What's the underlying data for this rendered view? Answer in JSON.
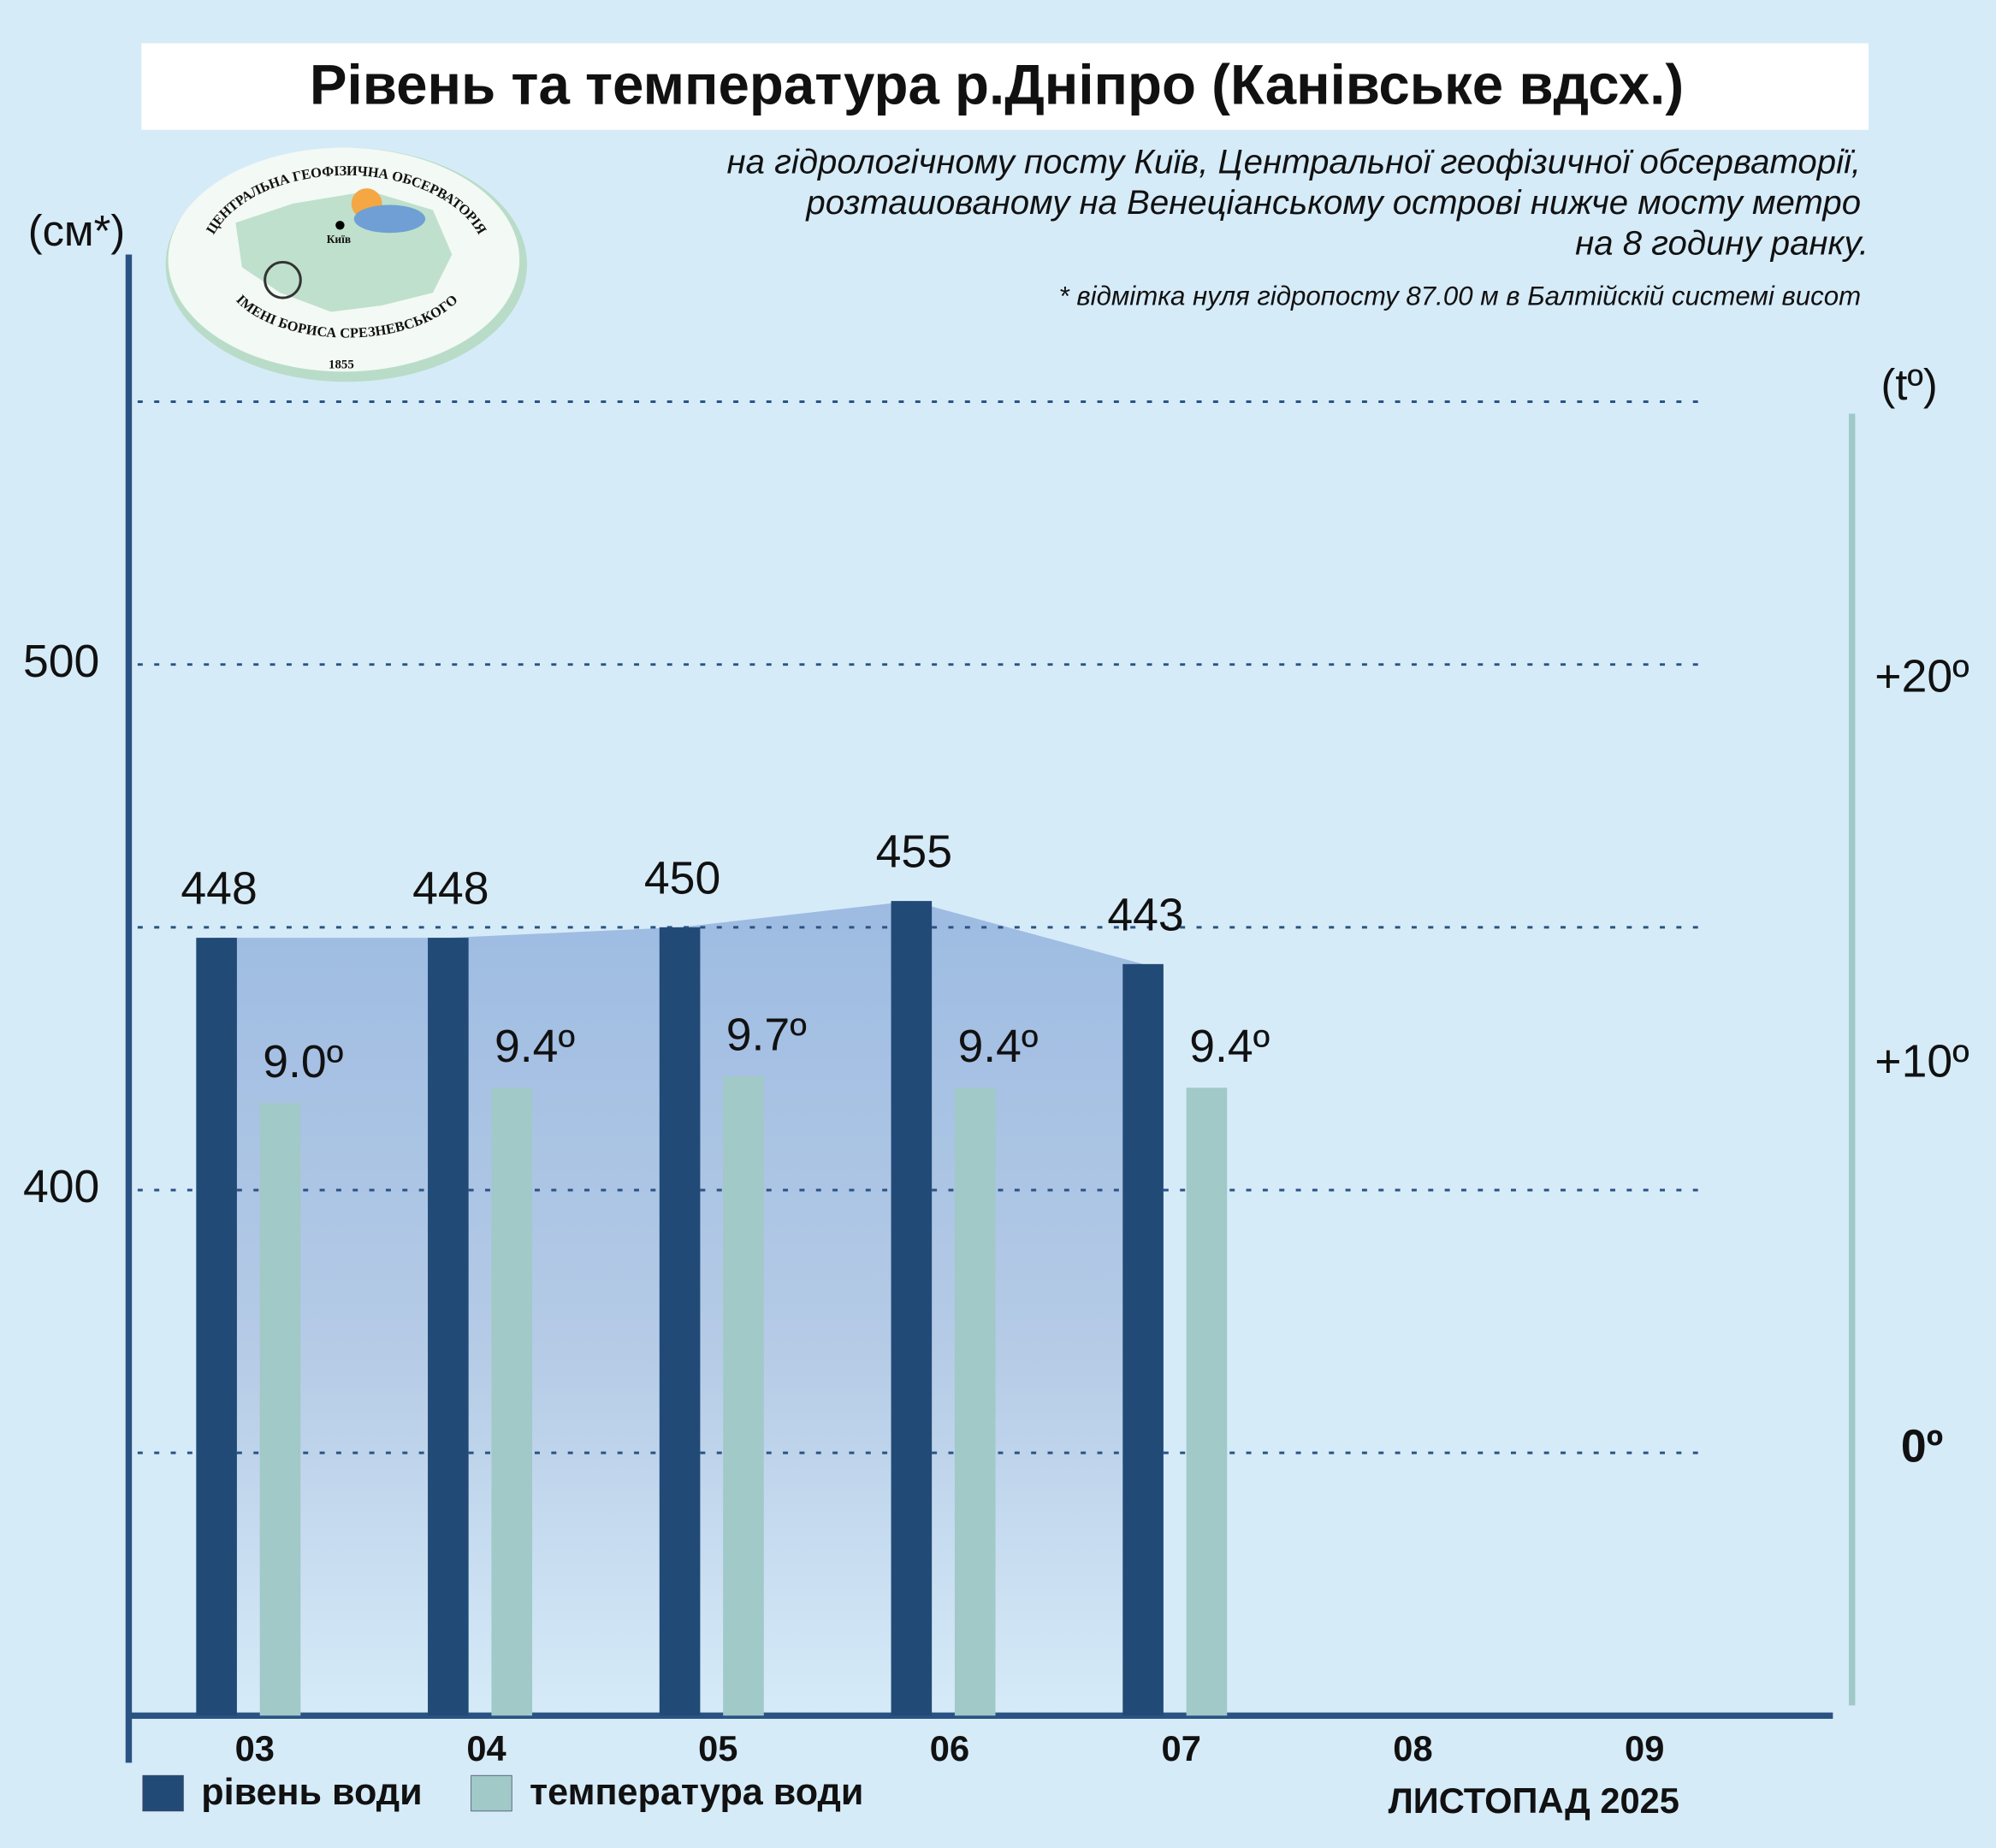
{
  "chart_data": {
    "type": "bar",
    "title": "Рівень та температура р.Дніпро (Канівське вдсх.)",
    "subtitle": [
      "на гідрологічному посту Київ, Центральної геофізичної обсерваторії,",
      "розташованому на Венеціанському острові нижче мосту метро",
      "на 8 годину ранку."
    ],
    "footnote": "* відмітка нуля гідропосту 87.00 м в Балтійскій системі висот",
    "y_label": "(см*)",
    "y2_label": "(tº)",
    "x_label": "ЛИСТОПАД 2025",
    "categories": [
      "03",
      "04",
      "05",
      "06",
      "07",
      "08",
      "09"
    ],
    "series": [
      {
        "name": "рівень води",
        "color": "#224a76",
        "values": [
          448,
          448,
          450,
          455,
          443,
          null,
          null
        ]
      },
      {
        "name": "температура води",
        "color": "#a0c9c8",
        "axis": "y2",
        "values": [
          9.0,
          9.4,
          9.7,
          9.4,
          9.4,
          null,
          null
        ],
        "value_labels": [
          "9.0º",
          "9.4º",
          "9.7º",
          "9.4º",
          "9.4º",
          null,
          null
        ]
      }
    ],
    "area_color": "#9dbbe2",
    "ylim": [
      300,
      578
    ],
    "yticks": [
      400,
      500
    ],
    "yminor": [
      350,
      450,
      550
    ],
    "grid": true,
    "y2lim": [
      -6.9,
      26.9
    ],
    "y2ticks": [
      {
        "value": 0,
        "label": "0º"
      },
      {
        "value": 10,
        "label": "+10º"
      },
      {
        "value": 20,
        "label": "+20º"
      }
    ],
    "logo": {
      "top": "ЦЕНТРАЛЬНА ГЕОФІЗИЧНА ОБСЕРВАТОРІЯ",
      "bottom": "ІМЕНІ БОРИСА СРЕЗНЕВСЬКОГО",
      "year": "1855",
      "city": "Київ"
    }
  }
}
